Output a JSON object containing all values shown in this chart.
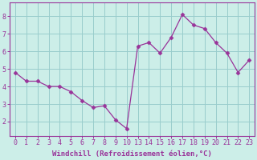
{
  "x_indices": [
    0,
    1,
    2,
    3,
    4,
    5,
    6,
    7,
    8,
    9,
    10,
    11,
    12,
    13,
    14,
    15,
    16,
    17,
    18,
    19,
    20,
    21
  ],
  "x_labels": [
    "0",
    "1",
    "2",
    "3",
    "4",
    "5",
    "6",
    "7",
    "8",
    "9",
    "10",
    "13",
    "14",
    "15",
    "16",
    "17",
    "18",
    "19",
    "20",
    "21",
    "22",
    "23"
  ],
  "y": [
    4.8,
    4.3,
    4.3,
    4.0,
    4.0,
    3.7,
    3.2,
    2.8,
    2.9,
    2.1,
    1.6,
    6.3,
    6.5,
    5.9,
    6.8,
    8.1,
    7.5,
    7.3,
    6.5,
    5.9,
    4.8,
    5.5
  ],
  "line_color": "#993399",
  "marker": "D",
  "marker_size": 2.5,
  "bg_color": "#cceee8",
  "grid_color": "#99cccc",
  "xlabel": "Windchill (Refroidissement éolien,°C)",
  "yticks": [
    2,
    3,
    4,
    5,
    6,
    7,
    8
  ],
  "xlim": [
    -0.5,
    21.5
  ],
  "ylim": [
    1.2,
    8.8
  ],
  "tick_color": "#993399",
  "label_color": "#993399",
  "spine_color": "#993399",
  "xlabel_fontsize": 6.5,
  "tick_fontsize": 6.0
}
